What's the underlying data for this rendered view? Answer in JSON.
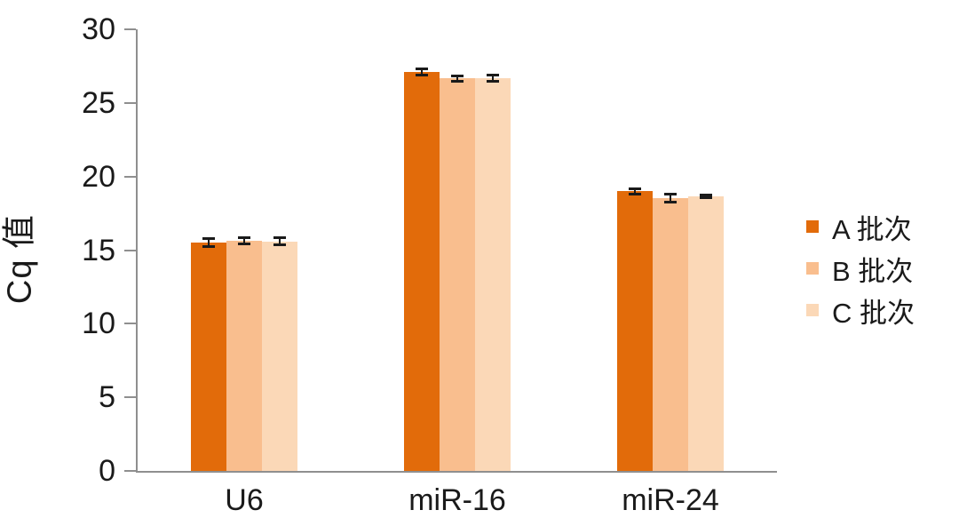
{
  "chart_data": {
    "type": "bar",
    "title": "",
    "xlabel": "",
    "ylabel": "Cq 值",
    "categories": [
      "U6",
      "miR-16",
      "miR-24"
    ],
    "series": [
      {
        "name": "A 批次",
        "color": "#e26b0a",
        "values": [
          15.5,
          27.1,
          19.0
        ],
        "errors": [
          0.3,
          0.25,
          0.2
        ]
      },
      {
        "name": "B 批次",
        "color": "#f9be8e",
        "values": [
          15.65,
          26.65,
          18.55
        ],
        "errors": [
          0.25,
          0.2,
          0.3
        ]
      },
      {
        "name": "C 批次",
        "color": "#fbd8b7",
        "values": [
          15.6,
          26.7,
          18.65
        ],
        "errors": [
          0.25,
          0.25,
          0.12
        ]
      }
    ],
    "ylim": [
      0,
      30
    ],
    "yticks": [
      0,
      5,
      10,
      15,
      20,
      25,
      30
    ],
    "grid": false,
    "legend_position": "right",
    "error_bar_color": "#1a1a1a",
    "axis_color": "#8f8f8f",
    "text_color": "#1a1a1a"
  }
}
